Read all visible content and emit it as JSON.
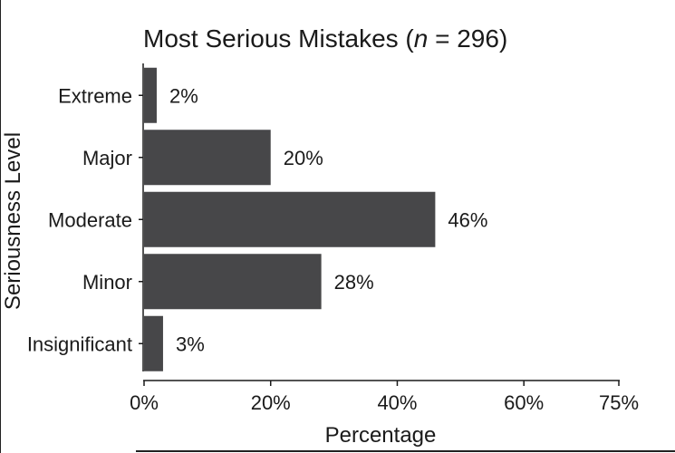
{
  "chart_data": {
    "type": "bar",
    "orientation": "horizontal",
    "title_main": "Most Serious Mistakes (",
    "title_n": "n",
    "title_rest": " = 296)",
    "xlabel": "Percentage",
    "ylabel": "Seriousness Level",
    "categories": [
      "Extreme",
      "Major",
      "Moderate",
      "Minor",
      "Insignificant"
    ],
    "values": [
      2,
      20,
      46,
      28,
      3
    ],
    "value_labels": [
      "2%",
      "20%",
      "46%",
      "28%",
      "3%"
    ],
    "xlim": [
      0,
      75
    ],
    "x_ticks": [
      0,
      20,
      40,
      60,
      75
    ],
    "x_tick_labels": [
      "0%",
      "20%",
      "40%",
      "60%",
      "75%"
    ],
    "bar_color": "#474749",
    "grid": false,
    "legend": "none"
  }
}
